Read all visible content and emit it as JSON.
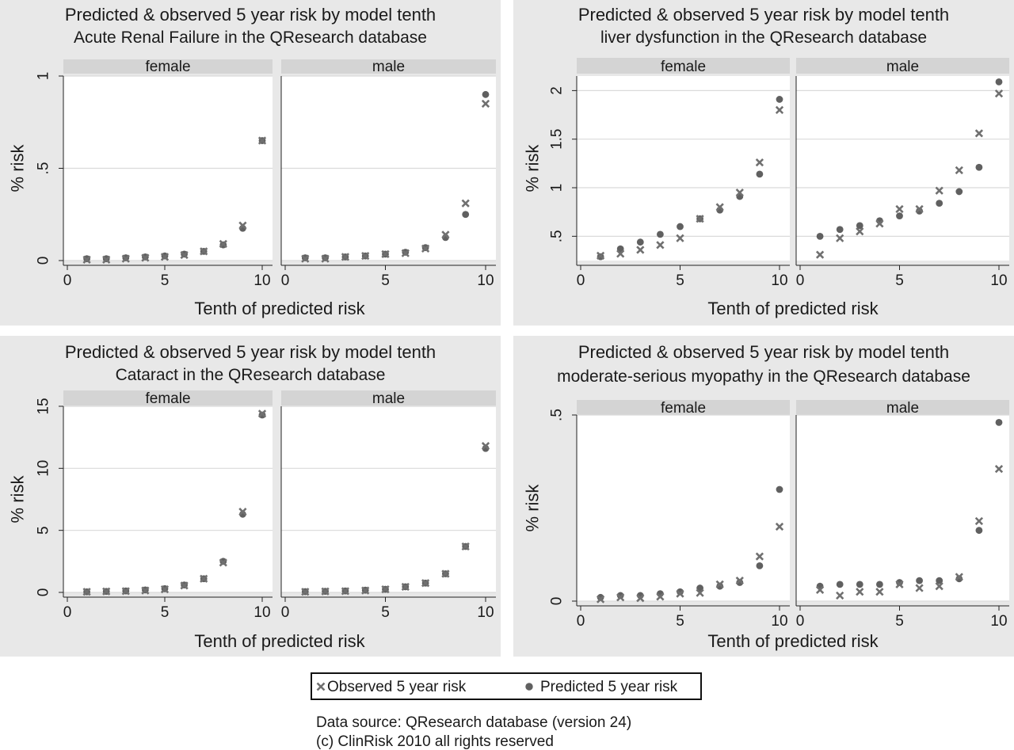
{
  "chart_data": [
    {
      "type": "scatter",
      "title": "Predicted & observed 5 year risk by model tenth",
      "subtitle": "Acute Renal Failure in the QResearch database",
      "xlabel": "Tenth of predicted risk",
      "ylabel": "% risk",
      "xlim": [
        0,
        10
      ],
      "ylim": [
        0,
        1
      ],
      "x_ticks": [
        0,
        5,
        10
      ],
      "y_ticks": [
        0,
        0.5,
        1
      ],
      "y_tick_labels": [
        "0",
        ".5",
        "1"
      ],
      "facets": [
        {
          "label": "female",
          "observed": [
            0.005,
            0.005,
            0.01,
            0.015,
            0.02,
            0.03,
            0.05,
            0.09,
            0.19,
            0.65
          ],
          "predicted": [
            0.01,
            0.01,
            0.015,
            0.02,
            0.025,
            0.035,
            0.05,
            0.085,
            0.175,
            0.65
          ]
        },
        {
          "label": "male",
          "observed": [
            0.01,
            0.01,
            0.02,
            0.025,
            0.035,
            0.04,
            0.065,
            0.14,
            0.31,
            0.85
          ],
          "predicted": [
            0.015,
            0.015,
            0.02,
            0.025,
            0.035,
            0.045,
            0.07,
            0.125,
            0.25,
            0.9
          ]
        }
      ]
    },
    {
      "type": "scatter",
      "title": "Predicted & observed 5 year risk by model tenth",
      "subtitle": "liver dysfunction in the QResearch database",
      "xlabel": "Tenth of predicted risk",
      "ylabel": "% risk",
      "xlim": [
        0,
        10
      ],
      "ylim": [
        0.25,
        2.15
      ],
      "x_ticks": [
        0,
        5,
        10
      ],
      "y_ticks": [
        0.5,
        1,
        1.5,
        2
      ],
      "y_tick_labels": [
        ".5",
        "1",
        "1.5",
        "2"
      ],
      "facets": [
        {
          "label": "female",
          "observed": [
            0.3,
            0.32,
            0.36,
            0.41,
            0.48,
            0.68,
            0.8,
            0.95,
            1.26,
            1.8
          ],
          "predicted": [
            0.29,
            0.37,
            0.44,
            0.52,
            0.6,
            0.68,
            0.77,
            0.91,
            1.14,
            1.91
          ]
        },
        {
          "label": "male",
          "observed": [
            0.31,
            0.48,
            0.55,
            0.63,
            0.78,
            0.78,
            0.97,
            1.18,
            1.56,
            1.97
          ],
          "predicted": [
            0.5,
            0.57,
            0.61,
            0.66,
            0.71,
            0.76,
            0.84,
            0.96,
            1.21,
            2.09
          ]
        }
      ]
    },
    {
      "type": "scatter",
      "title": "Predicted & observed 5 year risk by model tenth",
      "subtitle": "Cataract in the QResearch database",
      "xlabel": "Tenth of predicted risk",
      "ylabel": "% risk",
      "xlim": [
        0,
        10
      ],
      "ylim": [
        0,
        15
      ],
      "x_ticks": [
        0,
        5,
        10
      ],
      "y_ticks": [
        0,
        5,
        10,
        15
      ],
      "y_tick_labels": [
        "0",
        "5",
        "10",
        "15"
      ],
      "facets": [
        {
          "label": "female",
          "observed": [
            0.05,
            0.08,
            0.1,
            0.15,
            0.25,
            0.55,
            1.1,
            2.4,
            6.5,
            14.4
          ],
          "predicted": [
            0.05,
            0.08,
            0.12,
            0.2,
            0.3,
            0.6,
            1.1,
            2.5,
            6.3,
            14.3
          ]
        },
        {
          "label": "male",
          "observed": [
            0.05,
            0.08,
            0.1,
            0.15,
            0.25,
            0.45,
            0.75,
            1.5,
            3.7,
            11.8
          ],
          "predicted": [
            0.06,
            0.09,
            0.12,
            0.18,
            0.25,
            0.45,
            0.75,
            1.5,
            3.7,
            11.6
          ]
        }
      ]
    },
    {
      "type": "scatter",
      "title": "Predicted & observed 5 year risk by model tenth",
      "subtitle": "moderate-serious myopathy in the QResearch database",
      "xlabel": "Tenth of predicted risk",
      "ylabel": "% risk",
      "xlim": [
        0,
        10
      ],
      "ylim": [
        0,
        0.5
      ],
      "x_ticks": [
        0,
        5,
        10
      ],
      "y_ticks": [
        0,
        0.5
      ],
      "y_tick_labels": [
        "0",
        ".5"
      ],
      "facets": [
        {
          "label": "female",
          "observed": [
            0.005,
            0.01,
            0.008,
            0.012,
            0.02,
            0.022,
            0.045,
            0.055,
            0.12,
            0.2
          ],
          "predicted": [
            0.01,
            0.015,
            0.015,
            0.02,
            0.025,
            0.035,
            0.04,
            0.05,
            0.095,
            0.3
          ]
        },
        {
          "label": "male",
          "observed": [
            0.03,
            0.015,
            0.025,
            0.025,
            0.045,
            0.035,
            0.04,
            0.065,
            0.215,
            0.355
          ],
          "predicted": [
            0.04,
            0.045,
            0.045,
            0.045,
            0.05,
            0.055,
            0.055,
            0.06,
            0.19,
            0.48
          ]
        }
      ]
    }
  ],
  "legend": {
    "observed_label": "Observed 5 year risk",
    "predicted_label": "Predicted 5 year risk"
  },
  "footer": {
    "line1": "Data source: QResearch database (version 24)",
    "line2": "(c) ClinRisk 2010 all rights reserved"
  },
  "colors": {
    "panel_background": "#e8e8e8",
    "strip": "#d4d4d4",
    "observed_marker": "#707070",
    "predicted_marker": "#606060"
  }
}
